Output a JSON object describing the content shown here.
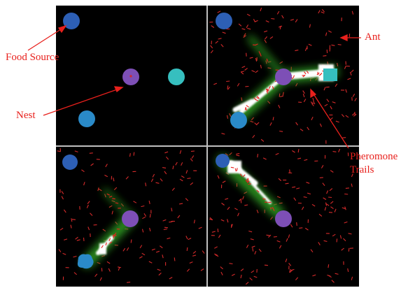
{
  "figure": {
    "background_color": "#ffffff",
    "panel_color": "#000000",
    "divider_color": "#bfbfbf",
    "annotation_color": "#e8201c",
    "nest_color": "#7d4fb6",
    "food_colors": [
      "#2d5fb5",
      "#2a8ac8",
      "#36bfbf"
    ],
    "ant_color": "#d42a2a",
    "trail_glow_color": "#2f9a20",
    "trail_core_color": "#ffffff"
  },
  "annotations": {
    "food_source": "Food Source",
    "nest": "Nest",
    "ant": "Ant",
    "pheromone_line1": "Pheromone",
    "pheromone_line2": "Trails"
  }
}
